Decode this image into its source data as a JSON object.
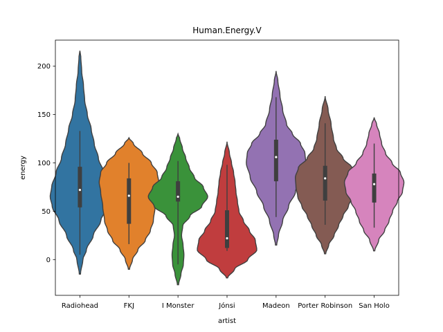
{
  "chart_data": {
    "type": "violin",
    "title": "Human.Energy.V",
    "xlabel": "artist",
    "ylabel": "energy",
    "ylim": [
      -37,
      227
    ],
    "yticks": [
      0,
      50,
      100,
      150,
      200
    ],
    "grid": false,
    "legend": "none",
    "categories": [
      "Radiohead",
      "FKJ",
      "I Monster",
      "Jónsi",
      "Madeon",
      "Porter Robinson",
      "San Holo"
    ],
    "series": [
      {
        "category": "Radiohead",
        "color": "#3274a1",
        "min": -15,
        "max": 216,
        "q1": 54,
        "median": 72,
        "q3": 96,
        "whisker_low": 5,
        "whisker_high": 133,
        "profile": [
          [
            -15,
            0.02
          ],
          [
            0,
            0.1
          ],
          [
            10,
            0.22
          ],
          [
            25,
            0.45
          ],
          [
            40,
            0.7
          ],
          [
            55,
            0.93
          ],
          [
            65,
            1.0
          ],
          [
            75,
            0.95
          ],
          [
            90,
            0.8
          ],
          [
            105,
            0.62
          ],
          [
            120,
            0.48
          ],
          [
            135,
            0.38
          ],
          [
            150,
            0.25
          ],
          [
            165,
            0.16
          ],
          [
            180,
            0.12
          ],
          [
            195,
            0.06
          ],
          [
            210,
            0.03
          ],
          [
            216,
            0.0
          ]
        ]
      },
      {
        "category": "FKJ",
        "color": "#e1812c",
        "min": -10,
        "max": 126,
        "q1": 37,
        "median": 66,
        "q3": 84,
        "whisker_low": 16,
        "whisker_high": 100,
        "profile": [
          [
            -10,
            0.02
          ],
          [
            0,
            0.12
          ],
          [
            10,
            0.3
          ],
          [
            20,
            0.55
          ],
          [
            30,
            0.72
          ],
          [
            40,
            0.82
          ],
          [
            55,
            0.88
          ],
          [
            70,
            0.95
          ],
          [
            80,
            1.0
          ],
          [
            90,
            0.95
          ],
          [
            100,
            0.75
          ],
          [
            110,
            0.45
          ],
          [
            120,
            0.15
          ],
          [
            126,
            0.0
          ]
        ]
      },
      {
        "category": "I Monster",
        "color": "#3a923a",
        "min": -26,
        "max": 130,
        "q1": 60,
        "median": 65,
        "q3": 81,
        "whisker_low": -5,
        "whisker_high": 102,
        "profile": [
          [
            -26,
            0.02
          ],
          [
            -15,
            0.1
          ],
          [
            -5,
            0.18
          ],
          [
            5,
            0.2
          ],
          [
            15,
            0.17
          ],
          [
            25,
            0.12
          ],
          [
            35,
            0.16
          ],
          [
            45,
            0.4
          ],
          [
            55,
            0.8
          ],
          [
            65,
            1.0
          ],
          [
            75,
            0.85
          ],
          [
            85,
            0.55
          ],
          [
            95,
            0.38
          ],
          [
            105,
            0.26
          ],
          [
            115,
            0.15
          ],
          [
            125,
            0.06
          ],
          [
            130,
            0.0
          ]
        ]
      },
      {
        "category": "Jónsi",
        "color": "#c03d3e",
        "min": -19,
        "max": 122,
        "q1": 12,
        "median": 22,
        "q3": 51,
        "whisker_low": 9,
        "whisker_high": 98,
        "profile": [
          [
            -19,
            0.02
          ],
          [
            -10,
            0.25
          ],
          [
            0,
            0.7
          ],
          [
            10,
            1.0
          ],
          [
            20,
            0.95
          ],
          [
            30,
            0.75
          ],
          [
            40,
            0.55
          ],
          [
            50,
            0.4
          ],
          [
            60,
            0.35
          ],
          [
            70,
            0.3
          ],
          [
            80,
            0.27
          ],
          [
            90,
            0.22
          ],
          [
            100,
            0.15
          ],
          [
            110,
            0.08
          ],
          [
            122,
            0.0
          ]
        ]
      },
      {
        "category": "Madeon",
        "color": "#9372b2",
        "min": 15,
        "max": 195,
        "q1": 81,
        "median": 106,
        "q3": 124,
        "whisker_low": 44,
        "whisker_high": 168,
        "profile": [
          [
            15,
            0.02
          ],
          [
            25,
            0.08
          ],
          [
            40,
            0.22
          ],
          [
            55,
            0.42
          ],
          [
            70,
            0.65
          ],
          [
            85,
            0.87
          ],
          [
            100,
            1.0
          ],
          [
            110,
            0.97
          ],
          [
            120,
            0.82
          ],
          [
            130,
            0.55
          ],
          [
            140,
            0.35
          ],
          [
            155,
            0.22
          ],
          [
            170,
            0.13
          ],
          [
            185,
            0.06
          ],
          [
            195,
            0.0
          ]
        ]
      },
      {
        "category": "Porter Robinson",
        "color": "#845b53",
        "min": 6,
        "max": 169,
        "q1": 61,
        "median": 84,
        "q3": 97,
        "whisker_low": 36,
        "whisker_high": 141,
        "profile": [
          [
            6,
            0.02
          ],
          [
            15,
            0.12
          ],
          [
            25,
            0.3
          ],
          [
            35,
            0.45
          ],
          [
            45,
            0.6
          ],
          [
            55,
            0.78
          ],
          [
            65,
            0.92
          ],
          [
            75,
            0.98
          ],
          [
            85,
            1.0
          ],
          [
            95,
            0.9
          ],
          [
            105,
            0.6
          ],
          [
            115,
            0.38
          ],
          [
            125,
            0.28
          ],
          [
            140,
            0.2
          ],
          [
            155,
            0.1
          ],
          [
            169,
            0.0
          ]
        ]
      },
      {
        "category": "San Holo",
        "color": "#d684bd",
        "min": 9,
        "max": 147,
        "q1": 59,
        "median": 78,
        "q3": 89,
        "whisker_low": 33,
        "whisker_high": 120,
        "profile": [
          [
            9,
            0.02
          ],
          [
            20,
            0.15
          ],
          [
            30,
            0.35
          ],
          [
            40,
            0.5
          ],
          [
            50,
            0.62
          ],
          [
            60,
            0.78
          ],
          [
            70,
            0.95
          ],
          [
            80,
            1.0
          ],
          [
            90,
            0.88
          ],
          [
            100,
            0.6
          ],
          [
            110,
            0.38
          ],
          [
            120,
            0.25
          ],
          [
            130,
            0.18
          ],
          [
            140,
            0.08
          ],
          [
            147,
            0.0
          ]
        ]
      }
    ]
  }
}
